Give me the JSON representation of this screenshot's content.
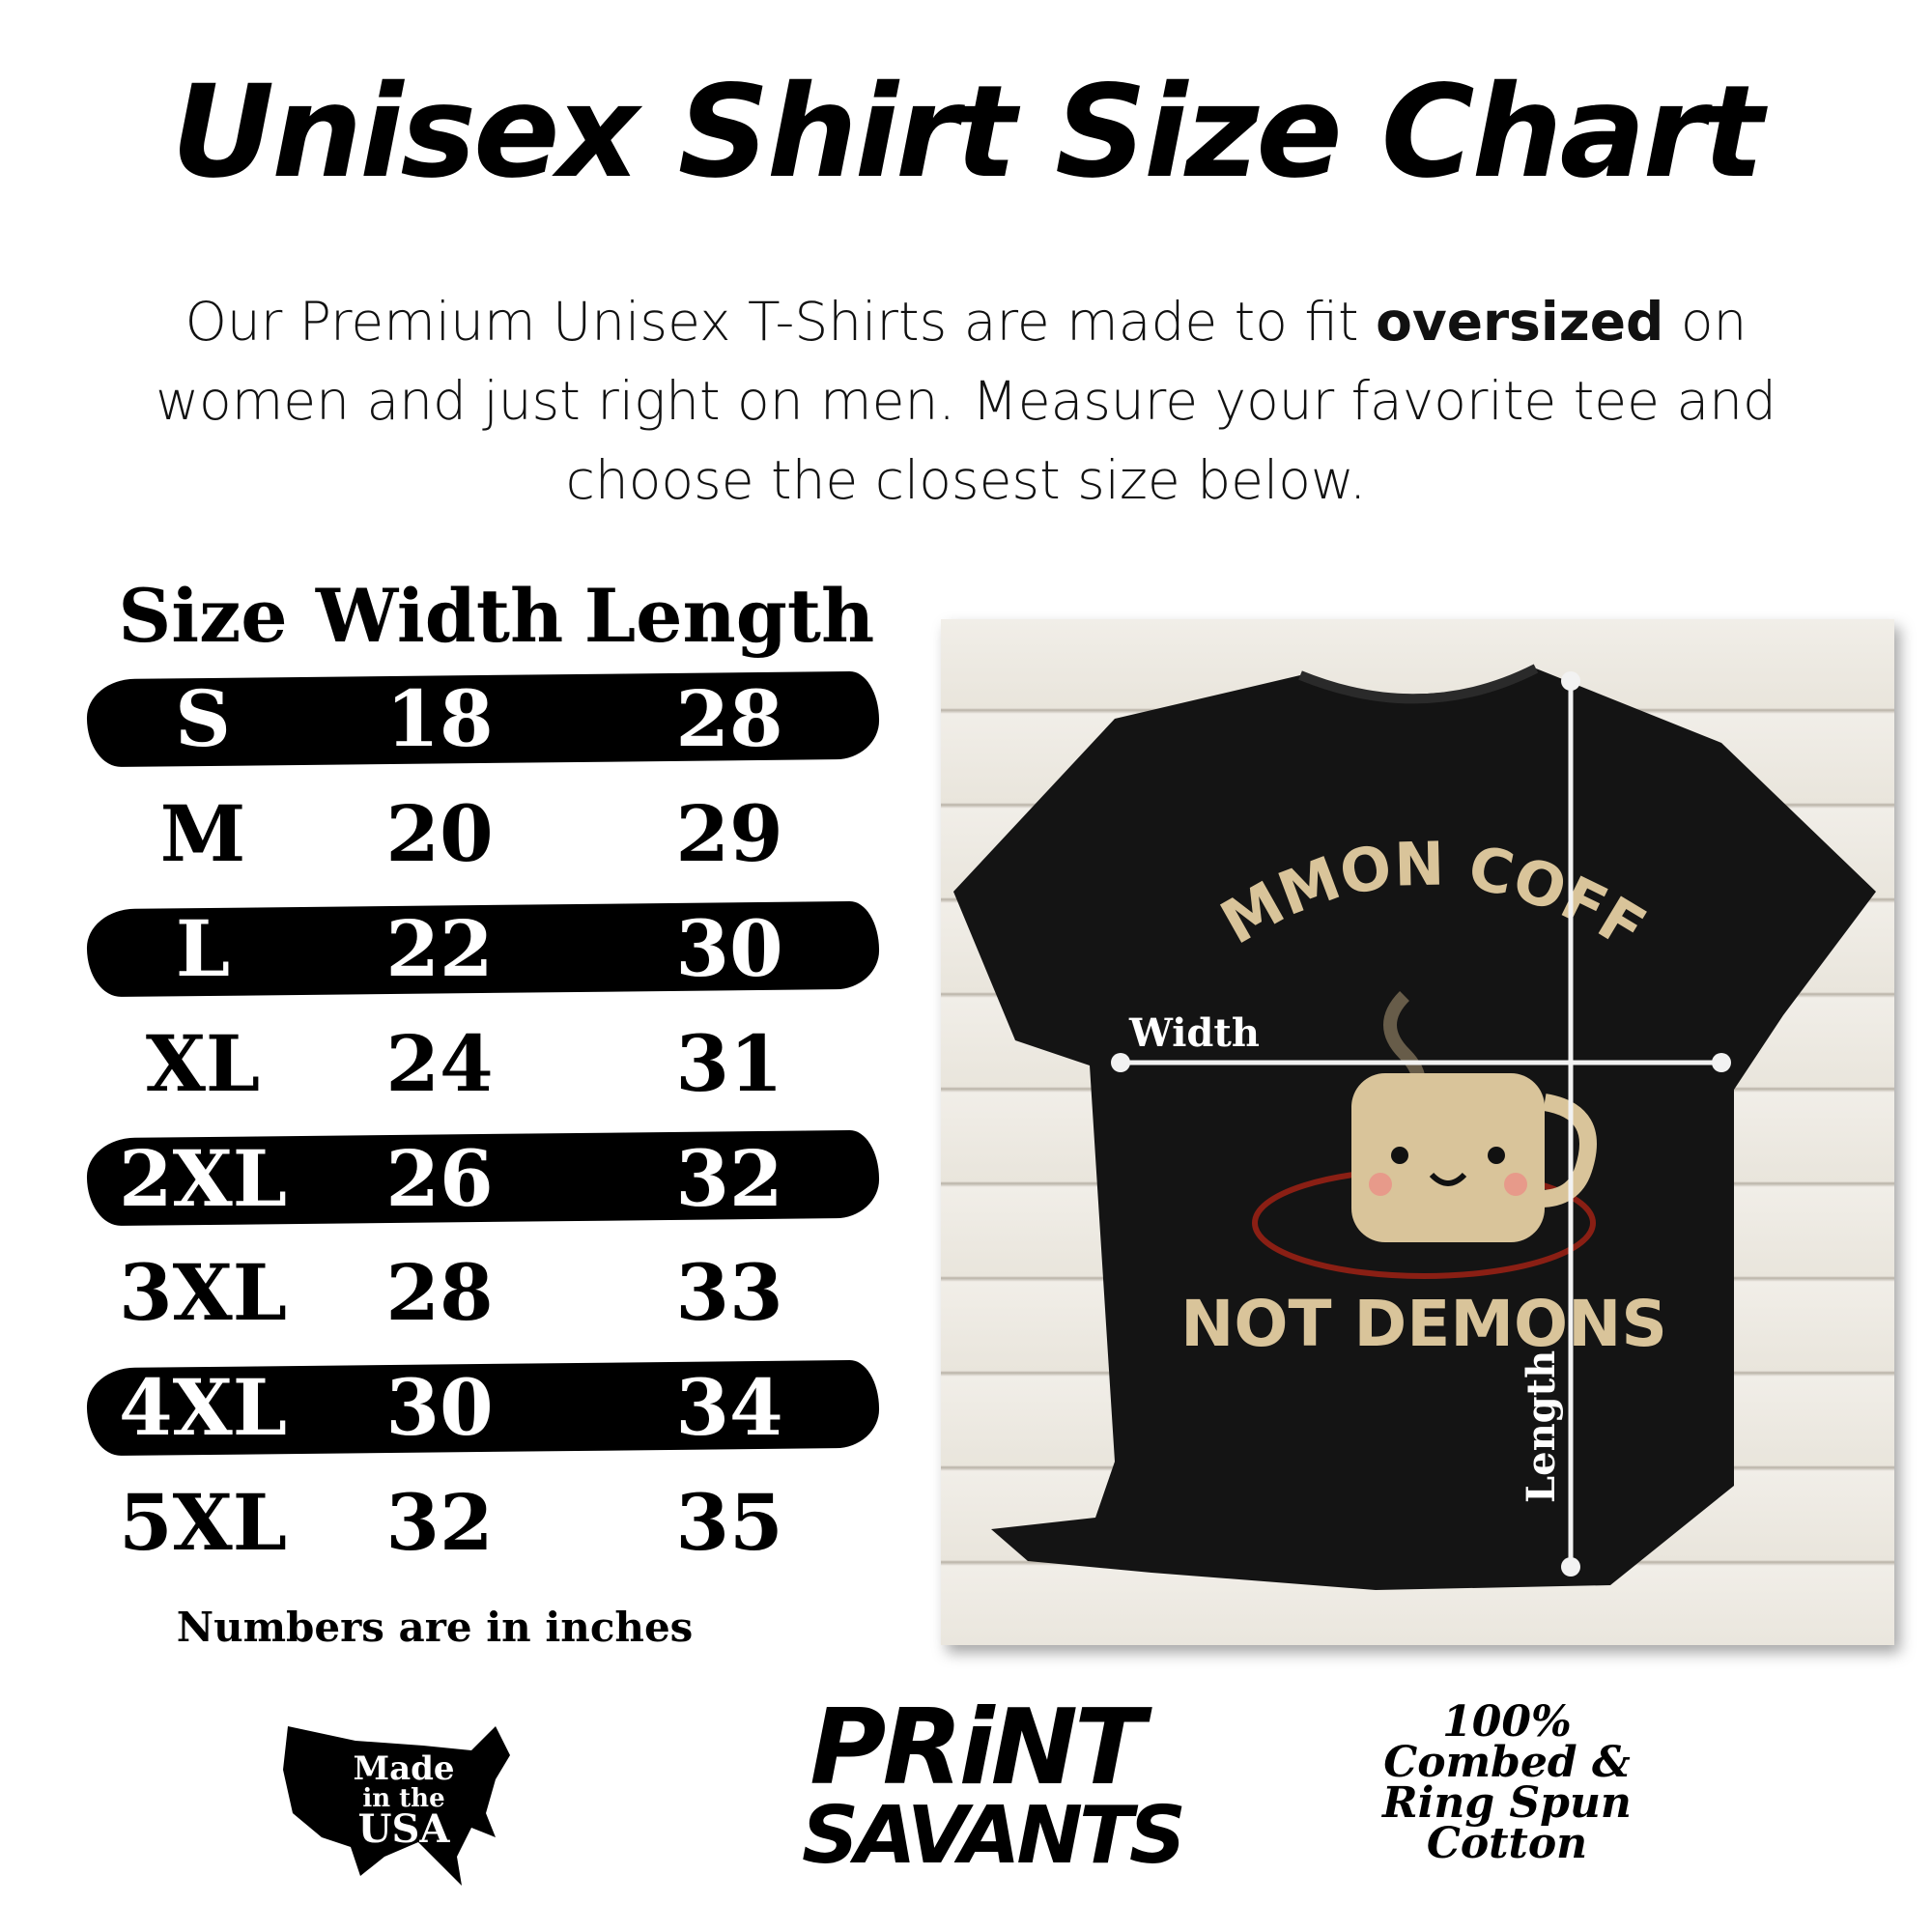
{
  "title": "Unisex Shirt Size Chart",
  "intro": {
    "before": "Our Premium Unisex T-Shirts are made to fit ",
    "emphasis": "oversized",
    "after": " on women and just right on men. Measure your favorite tee and choose the closest size below."
  },
  "table": {
    "headers": [
      "Size",
      "Width",
      "Length"
    ],
    "rows": [
      {
        "size": "S",
        "width": "18",
        "length": "28",
        "highlighted": true
      },
      {
        "size": "M",
        "width": "20",
        "length": "29",
        "highlighted": false
      },
      {
        "size": "L",
        "width": "22",
        "length": "30",
        "highlighted": true
      },
      {
        "size": "XL",
        "width": "24",
        "length": "31",
        "highlighted": false
      },
      {
        "size": "2XL",
        "width": "26",
        "length": "32",
        "highlighted": true
      },
      {
        "size": "3XL",
        "width": "28",
        "length": "33",
        "highlighted": false
      },
      {
        "size": "4XL",
        "width": "30",
        "length": "34",
        "highlighted": true
      },
      {
        "size": "5XL",
        "width": "32",
        "length": "35",
        "highlighted": false
      }
    ],
    "note": "Numbers are in inches"
  },
  "photo": {
    "shirt_text_top": "SUMMON COFFEE",
    "shirt_text_bottom": "NOT DEMONS",
    "width_label": "Width",
    "length_label": "Length",
    "shirt_color": "#141414",
    "print_color": "#d9c49a",
    "pentagram_color": "#8a1f14"
  },
  "badges": {
    "usa": [
      "Made",
      "in the",
      "USA"
    ],
    "brand": [
      "PRiNT",
      "SAVANTS"
    ],
    "cotton": [
      "100%",
      "Combed &",
      "Ring Spun",
      "Cotton"
    ]
  }
}
